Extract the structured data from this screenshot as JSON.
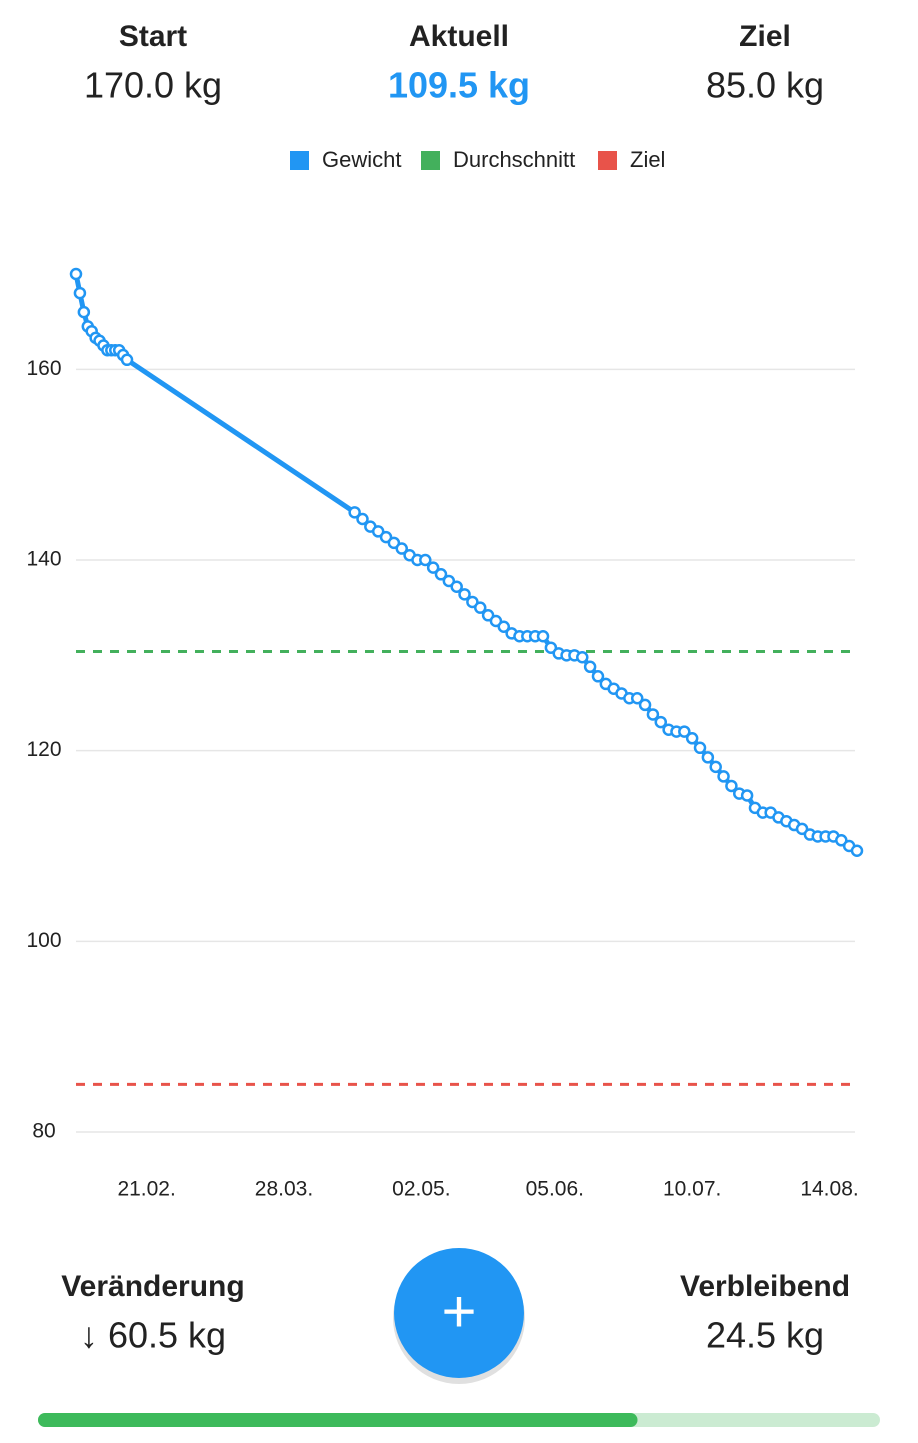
{
  "header": {
    "stats": [
      {
        "label": "Start",
        "value": "170.0 kg"
      },
      {
        "label": "Aktuell",
        "value": "109.5 kg"
      },
      {
        "label": "Ziel",
        "value": "85.0 kg"
      }
    ]
  },
  "chart_data": {
    "type": "line",
    "x": [
      "03.02.",
      "04.02.",
      "05.02.",
      "06.02.",
      "07.02.",
      "08.02.",
      "09.02.",
      "10.02.",
      "11.02.",
      "12.02.",
      "13.02.",
      "14.02.",
      "15.02.",
      "16.02.",
      "15.04.",
      "17.04.",
      "19.04.",
      "21.04.",
      "23.04.",
      "25.04.",
      "27.04.",
      "29.04.",
      "01.05.",
      "03.05.",
      "05.05.",
      "07.05.",
      "09.05.",
      "11.05.",
      "13.05.",
      "15.05.",
      "17.05.",
      "19.05.",
      "21.05.",
      "23.05.",
      "25.05.",
      "27.05.",
      "29.05.",
      "31.05.",
      "02.06.",
      "04.06.",
      "06.06.",
      "08.06.",
      "10.06.",
      "12.06.",
      "14.06.",
      "16.06.",
      "18.06.",
      "20.06.",
      "22.06.",
      "24.06.",
      "26.06.",
      "28.06.",
      "30.06.",
      "02.07.",
      "04.07.",
      "06.07.",
      "08.07.",
      "10.07.",
      "12.07.",
      "14.07.",
      "16.07.",
      "18.07.",
      "20.07.",
      "22.07.",
      "24.07.",
      "26.07.",
      "28.07.",
      "30.07.",
      "01.08.",
      "03.08.",
      "05.08.",
      "07.08.",
      "09.08.",
      "11.08.",
      "13.08.",
      "15.08.",
      "17.08.",
      "19.08.",
      "21.08."
    ],
    "series": [
      {
        "name": "Gewicht",
        "color": "#2196f3",
        "values": [
          170.0,
          168.0,
          166.0,
          164.5,
          164.0,
          163.3,
          163.0,
          162.5,
          162.0,
          162.0,
          162.0,
          162.0,
          161.5,
          161.0,
          145.0,
          144.3,
          143.5,
          143.0,
          142.4,
          141.8,
          141.2,
          140.5,
          140.0,
          140.0,
          139.2,
          138.5,
          137.8,
          137.2,
          136.4,
          135.6,
          135.0,
          134.2,
          133.6,
          133.0,
          132.3,
          132.0,
          132.0,
          132.0,
          132.0,
          130.8,
          130.2,
          130.0,
          130.0,
          129.8,
          128.8,
          127.8,
          127.0,
          126.5,
          126.0,
          125.5,
          125.5,
          124.8,
          123.8,
          123.0,
          122.2,
          122.0,
          122.0,
          121.3,
          120.3,
          119.3,
          118.3,
          117.3,
          116.3,
          115.5,
          115.3,
          114.0,
          113.5,
          113.5,
          113.0,
          112.6,
          112.2,
          111.8,
          111.2,
          111.0,
          111.0,
          111.0,
          110.6,
          110.0,
          109.5
        ]
      },
      {
        "name": "Durchschnitt",
        "color": "#43b05c",
        "value": 130.4
      },
      {
        "name": "Ziel",
        "color": "#e8534a",
        "value": 85
      }
    ],
    "xlim": [
      "03.02.",
      "21.08."
    ],
    "xticks": [
      "21.02.",
      "28.03.",
      "02.05.",
      "05.06.",
      "10.07.",
      "14.08."
    ],
    "ylim": [
      80,
      170
    ],
    "yticks": [
      80,
      100,
      120,
      140,
      160
    ],
    "grid": true
  },
  "footer": {
    "change_label": "Veränderung",
    "change_value": "↓ 60.5 kg",
    "remaining_label": "Verbleibend",
    "remaining_value": "24.5 kg",
    "fab": "+",
    "progress": 71.2
  }
}
